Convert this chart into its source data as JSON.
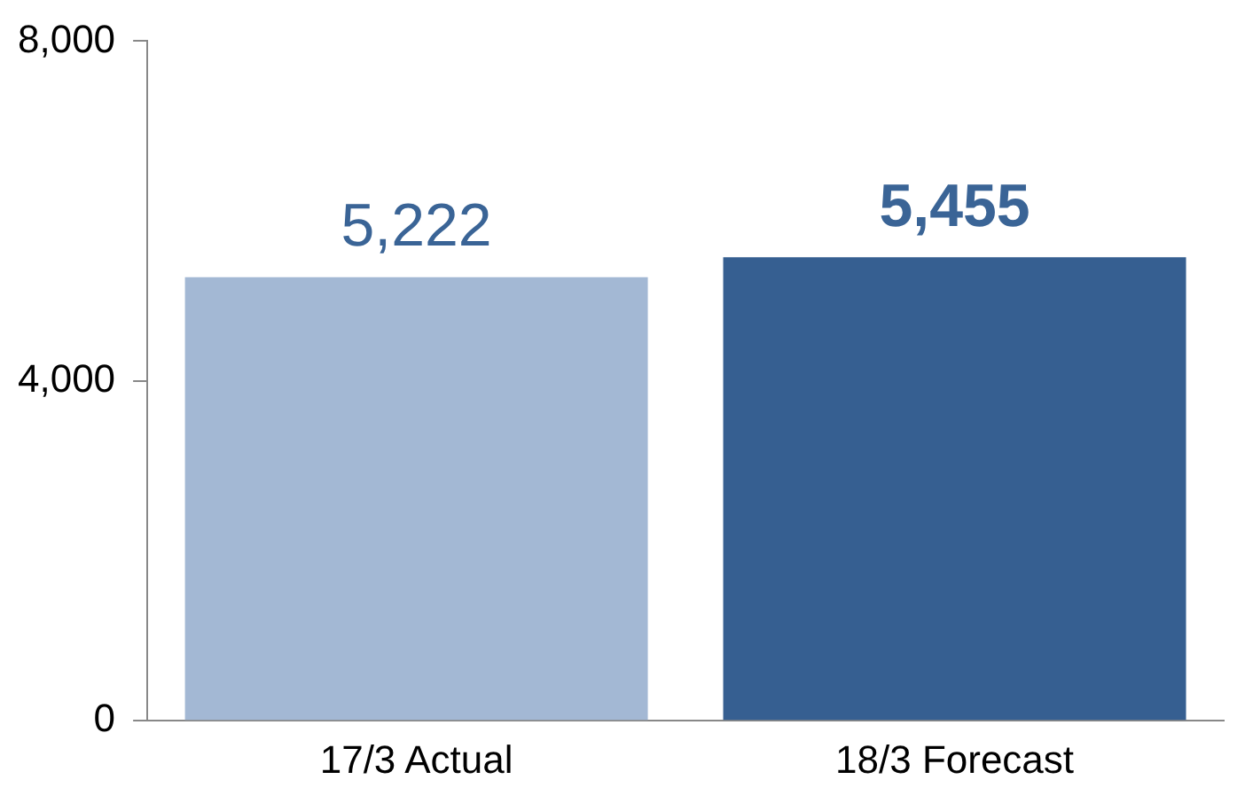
{
  "chart_data": {
    "type": "bar",
    "categories": [
      "17/3 Actual",
      "18/3 Forecast"
    ],
    "values": [
      5222,
      5455
    ],
    "colors": [
      "#a3b8d4",
      "#365f91"
    ],
    "ylim": [
      0,
      8000
    ],
    "yticks": [
      0,
      {
        "value": 4000,
        "label": "4,000"
      },
      {
        "value": 8000,
        "label": "8,000"
      }
    ],
    "grid": false,
    "legend": false,
    "value_labels": [
      "5,222",
      "5,455"
    ]
  }
}
